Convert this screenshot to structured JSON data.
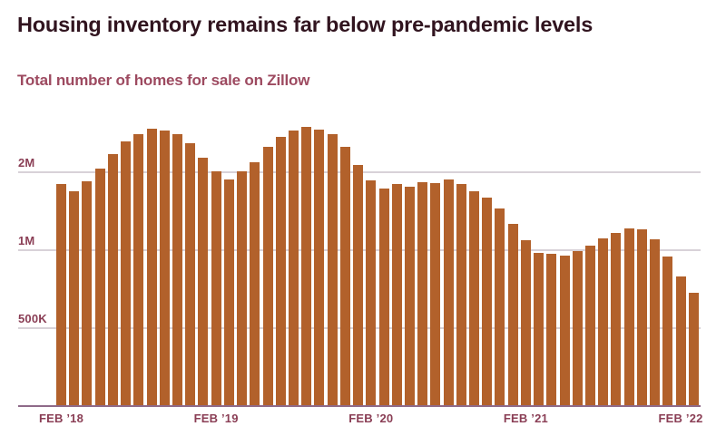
{
  "chart_data": {
    "type": "bar",
    "title": "Housing inventory remains far below pre-pandemic levels",
    "subtitle": "Total number of homes for sale on Zillow",
    "x": [
      "Feb 2018",
      "Mar 2018",
      "Apr 2018",
      "May 2018",
      "Jun 2018",
      "Jul 2018",
      "Aug 2018",
      "Sep 2018",
      "Oct 2018",
      "Nov 2018",
      "Dec 2018",
      "Jan 2019",
      "Feb 2019",
      "Mar 2019",
      "Apr 2019",
      "May 2019",
      "Jun 2019",
      "Jul 2019",
      "Aug 2019",
      "Sep 2019",
      "Oct 2019",
      "Nov 2019",
      "Dec 2019",
      "Jan 2020",
      "Feb 2020",
      "Mar 2020",
      "Apr 2020",
      "May 2020",
      "Jun 2020",
      "Jul 2020",
      "Aug 2020",
      "Sep 2020",
      "Oct 2020",
      "Nov 2020",
      "Dec 2020",
      "Jan 2021",
      "Feb 2021",
      "Mar 2021",
      "Apr 2021",
      "May 2021",
      "Jun 2021",
      "Jul 2021",
      "Aug 2021",
      "Sep 2021",
      "Oct 2021",
      "Nov 2021",
      "Dec 2021",
      "Jan 2022",
      "Feb 2022",
      "Mar 2022"
    ],
    "values": [
      1800000,
      1690000,
      1850000,
      2070000,
      2350000,
      2630000,
      2810000,
      2950000,
      2900000,
      2810000,
      2590000,
      2280000,
      2020000,
      1880000,
      2020000,
      2190000,
      2510000,
      2740000,
      2900000,
      2990000,
      2920000,
      2810000,
      2510000,
      2130000,
      1860000,
      1730000,
      1800000,
      1760000,
      1830000,
      1820000,
      1880000,
      1800000,
      1690000,
      1600000,
      1450000,
      1260000,
      1090000,
      980000,
      970000,
      950000,
      990000,
      1040000,
      1110000,
      1170000,
      1210000,
      1200000,
      1100000,
      945000,
      790000,
      685000
    ],
    "y_axis": {
      "scale": "log2",
      "baseline_value": 250000,
      "ticks": [
        {
          "label": "2M",
          "value": 2000000
        },
        {
          "label": "1M",
          "value": 1000000
        },
        {
          "label": "500K",
          "value": 500000
        }
      ]
    },
    "x_ticks": [
      {
        "label": "FEB ’18",
        "month_index": 0
      },
      {
        "label": "FEB ’19",
        "month_index": 12
      },
      {
        "label": "FEB ’20",
        "month_index": 24
      },
      {
        "label": "FEB ’21",
        "month_index": 36
      },
      {
        "label": "FEB ’22",
        "month_index": 48
      }
    ],
    "grid": "horizontal-only",
    "legend": "none",
    "colors": {
      "bar": "#b2612b",
      "gridline": "#d8d2d8",
      "axis_line": "#8e6a89",
      "tick_label": "#8a3e55",
      "title": "#31141f",
      "subtitle": "#9d4a60"
    }
  }
}
